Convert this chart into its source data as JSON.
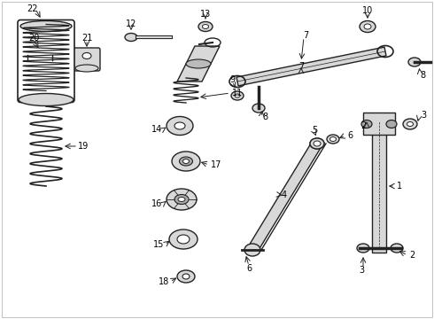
{
  "bg_color": "#ffffff",
  "line_color": "#222222",
  "fill_light": "#d8d8d8",
  "fill_dark": "#888888",
  "text_color": "#000000",
  "fig_width": 4.9,
  "fig_height": 3.6,
  "dpi": 100
}
